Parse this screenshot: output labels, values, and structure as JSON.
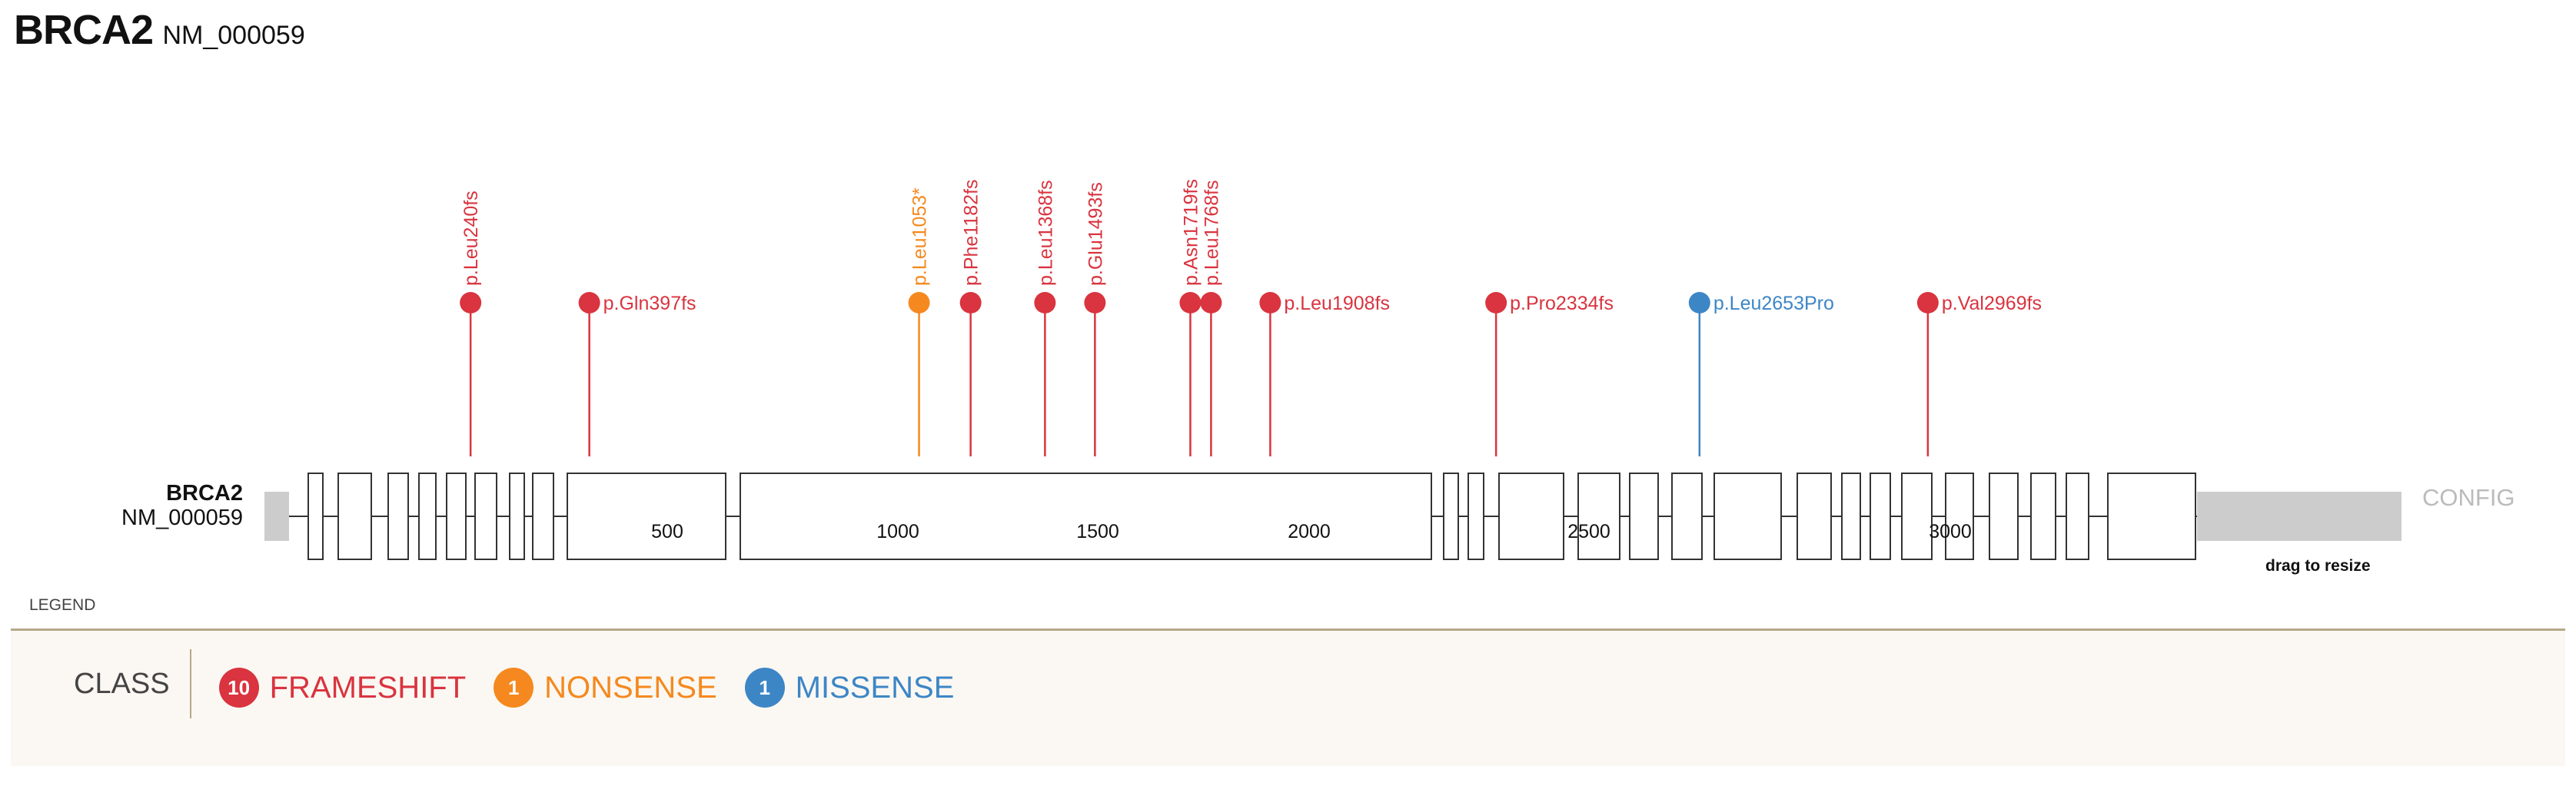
{
  "header": {
    "gene": "BRCA2",
    "transcript": "NM_000059"
  },
  "track": {
    "gene": "BRCA2",
    "transcript": "NM_000059",
    "protein_length": 3418
  },
  "controls": {
    "config": "CONFIG",
    "resize": "drag to resize"
  },
  "legend": {
    "title": "LEGEND",
    "class_label": "CLASS"
  },
  "colors": {
    "frameshift": "#d9343f",
    "nonsense": "#f5891f",
    "missense": "#3d86c6",
    "utr": "#cccccc",
    "line": "#333333"
  },
  "chart_data": {
    "type": "lollipop",
    "axis": {
      "ticks": [
        500,
        1000,
        1500,
        2000,
        2500,
        3000
      ],
      "range": [
        0,
        3418
      ]
    },
    "mutations": [
      {
        "label": "p.Leu240fs",
        "pos": 240,
        "class": "frameshift",
        "orient": "vertical"
      },
      {
        "label": "p.Gln397fs",
        "pos": 397,
        "class": "frameshift",
        "orient": "horizontal"
      },
      {
        "label": "p.Leu1053*",
        "pos": 1053,
        "class": "nonsense",
        "orient": "vertical"
      },
      {
        "label": "p.Phe1182fs",
        "pos": 1182,
        "class": "frameshift",
        "orient": "vertical"
      },
      {
        "label": "p.Leu1368fs",
        "pos": 1368,
        "class": "frameshift",
        "orient": "vertical"
      },
      {
        "label": "p.Glu1493fs",
        "pos": 1493,
        "class": "frameshift",
        "orient": "vertical"
      },
      {
        "label": "p.Asn1719fs",
        "pos": 1719,
        "class": "frameshift",
        "orient": "vertical"
      },
      {
        "label": "p.Leu1768fs",
        "pos": 1768,
        "class": "frameshift",
        "orient": "vertical"
      },
      {
        "label": "p.Leu1908fs",
        "pos": 1908,
        "class": "frameshift",
        "orient": "horizontal"
      },
      {
        "label": "p.Pro2334fs",
        "pos": 2334,
        "class": "frameshift",
        "orient": "horizontal"
      },
      {
        "label": "p.Leu2653Pro",
        "pos": 2653,
        "class": "missense",
        "orient": "horizontal"
      },
      {
        "label": "p.Val2969fs",
        "pos": 2969,
        "class": "frameshift",
        "orient": "horizontal"
      }
    ],
    "classes": [
      {
        "name": "FRAMESHIFT",
        "count": "10",
        "key": "frameshift"
      },
      {
        "name": "NONSENSE",
        "count": "1",
        "key": "nonsense"
      },
      {
        "name": "MISSENSE",
        "count": "1",
        "key": "missense"
      }
    ]
  }
}
